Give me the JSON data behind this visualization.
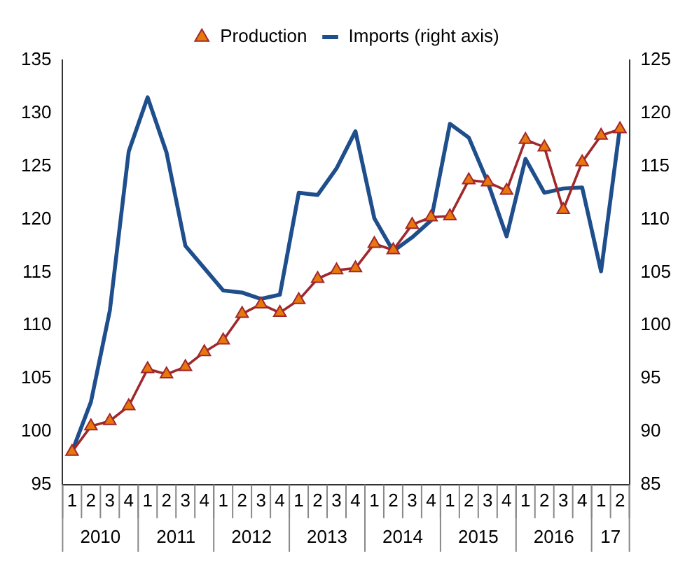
{
  "chart_data": {
    "type": "line",
    "categories": [
      "1",
      "2",
      "3",
      "4",
      "1",
      "2",
      "3",
      "4",
      "1",
      "2",
      "3",
      "4",
      "1",
      "2",
      "3",
      "4",
      "1",
      "2",
      "3",
      "4",
      "1",
      "2",
      "3",
      "4",
      "1",
      "2",
      "3",
      "4",
      "1",
      "2"
    ],
    "series": [
      {
        "name": "Production",
        "color": "#a0282d",
        "marker": "triangle",
        "values": [
          98.1,
          100.5,
          101.0,
          102.4,
          105.9,
          105.4,
          106.1,
          107.5,
          108.6,
          111.1,
          112.0,
          111.2,
          112.4,
          114.4,
          115.2,
          115.4,
          117.7,
          117.1,
          119.5,
          120.2,
          120.3,
          123.7,
          123.5,
          122.7,
          127.5,
          126.8,
          120.9,
          125.4,
          127.9,
          128.5
        ]
      },
      {
        "name": "Imports (right axis)",
        "color": "#1f4e8c",
        "marker": "none",
        "axis": "y2",
        "values": [
          88.1,
          92.8,
          101.4,
          116.4,
          121.5,
          116.3,
          107.5,
          105.4,
          103.3,
          103.1,
          102.5,
          102.9,
          112.5,
          112.3,
          114.8,
          118.3,
          110.1,
          107.0,
          108.3,
          109.9,
          119.0,
          117.7,
          113.5,
          108.4,
          115.7,
          112.5,
          112.9,
          113.0,
          105.1,
          118.7
        ]
      }
    ],
    "ylim": [
      95,
      135
    ],
    "yticks": [
      95,
      100,
      105,
      110,
      115,
      120,
      125,
      130,
      135
    ],
    "y2lim": [
      85,
      125
    ],
    "y2ticks": [
      85,
      90,
      95,
      100,
      105,
      110,
      115,
      120,
      125
    ],
    "annotations": [
      "2010",
      "2011",
      "2012",
      "2013",
      "2014",
      "2015",
      "2016",
      "17"
    ],
    "legend": "top",
    "grid": false,
    "line_style": "solid"
  }
}
